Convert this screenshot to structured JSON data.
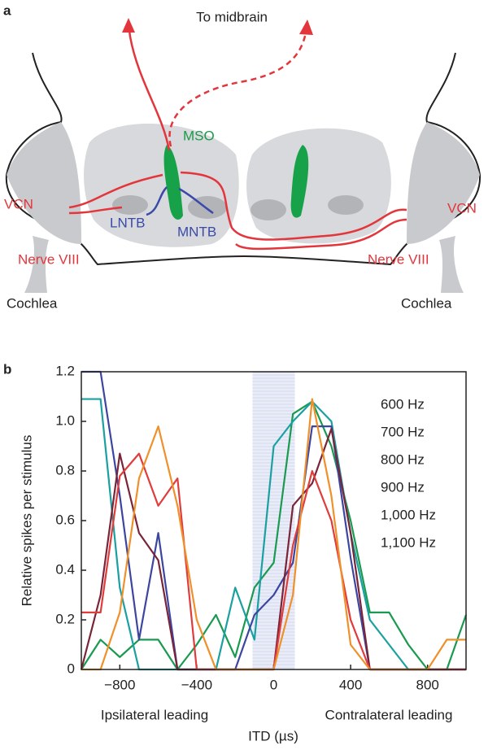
{
  "diagram": {
    "panel_label": "a",
    "to_midbrain": "To midbrain",
    "mso": "MSO",
    "vcn_left": "VCN",
    "vcn_right": "VCN",
    "lntb": "LNTB",
    "mntb": "MNTB",
    "nerve_left": "Nerve VIII",
    "nerve_right": "Nerve VIII",
    "cochlea_left": "Cochlea",
    "cochlea_right": "Cochlea"
  },
  "chart_data": {
    "type": "line",
    "panel_label": "b",
    "xlabel": "ITD (µs)",
    "ylabel": "Relative spikes per stimulus",
    "annotations": [
      "Ipsilateral leading",
      "Contralateral leading"
    ],
    "shaded_region": [
      -110,
      110
    ],
    "x": [
      -1000,
      -900,
      -800,
      -700,
      -600,
      -500,
      -400,
      -300,
      -200,
      -100,
      0,
      100,
      200,
      300,
      400,
      500,
      600,
      700,
      800,
      900,
      1000
    ],
    "series": [
      {
        "name": "600 Hz",
        "color": "#1a9a50",
        "values": [
          0,
          0.12,
          0.05,
          0.12,
          0.12,
          0,
          0.1,
          0.22,
          0.05,
          0.33,
          0.43,
          1.03,
          1.08,
          0.9,
          0.6,
          0.23,
          0.23,
          0.1,
          0,
          0,
          0.22
        ]
      },
      {
        "name": "700 Hz",
        "color": "#1aa0a0",
        "values": [
          1.09,
          1.09,
          0.33,
          0,
          0,
          0,
          0,
          0,
          0.33,
          0.12,
          0.9,
          1.0,
          1.08,
          1.0,
          0.55,
          0.2,
          0.1,
          0,
          0,
          0,
          0
        ]
      },
      {
        "name": "800 Hz",
        "color": "#3c46a0",
        "values": [
          1.2,
          1.2,
          0.7,
          0.12,
          0.55,
          0,
          0,
          0,
          0,
          0.22,
          0.3,
          0.43,
          0.98,
          0.98,
          0.45,
          0,
          0,
          0,
          0,
          0,
          0
        ]
      },
      {
        "name": "900 Hz",
        "color": "#7a2438",
        "values": [
          0,
          0.3,
          0.87,
          0.55,
          0.44,
          0,
          0,
          0,
          0,
          0,
          0,
          0.66,
          0.75,
          0.97,
          0.55,
          0,
          0,
          0,
          0,
          0,
          0
        ]
      },
      {
        "name": "1,000 Hz",
        "color": "#e03c3c",
        "values": [
          0.23,
          0.23,
          0.78,
          0.87,
          0.66,
          0.77,
          0,
          0,
          0,
          0,
          0,
          0.5,
          0.8,
          0.6,
          0.2,
          0,
          0,
          0,
          0,
          0,
          0
        ]
      },
      {
        "name": "1,100 Hz",
        "color": "#f0902a",
        "values": [
          0,
          0,
          0.23,
          0.77,
          0.98,
          0.66,
          0.2,
          0,
          0,
          0,
          0,
          0.3,
          1.09,
          0.7,
          0.1,
          0,
          0,
          0,
          0,
          0.12,
          0.12
        ]
      }
    ],
    "xlim": [
      -1000,
      1000
    ],
    "xticks": [
      {
        "value": -800,
        "label": "−800"
      },
      {
        "value": -400,
        "label": "−400"
      },
      0,
      400,
      800
    ],
    "ylim": [
      0,
      1.2
    ],
    "yticks": [
      0,
      0.2,
      0.4,
      0.6,
      0.8,
      {
        "value": 1,
        "label": "1.0"
      },
      1.2
    ]
  }
}
